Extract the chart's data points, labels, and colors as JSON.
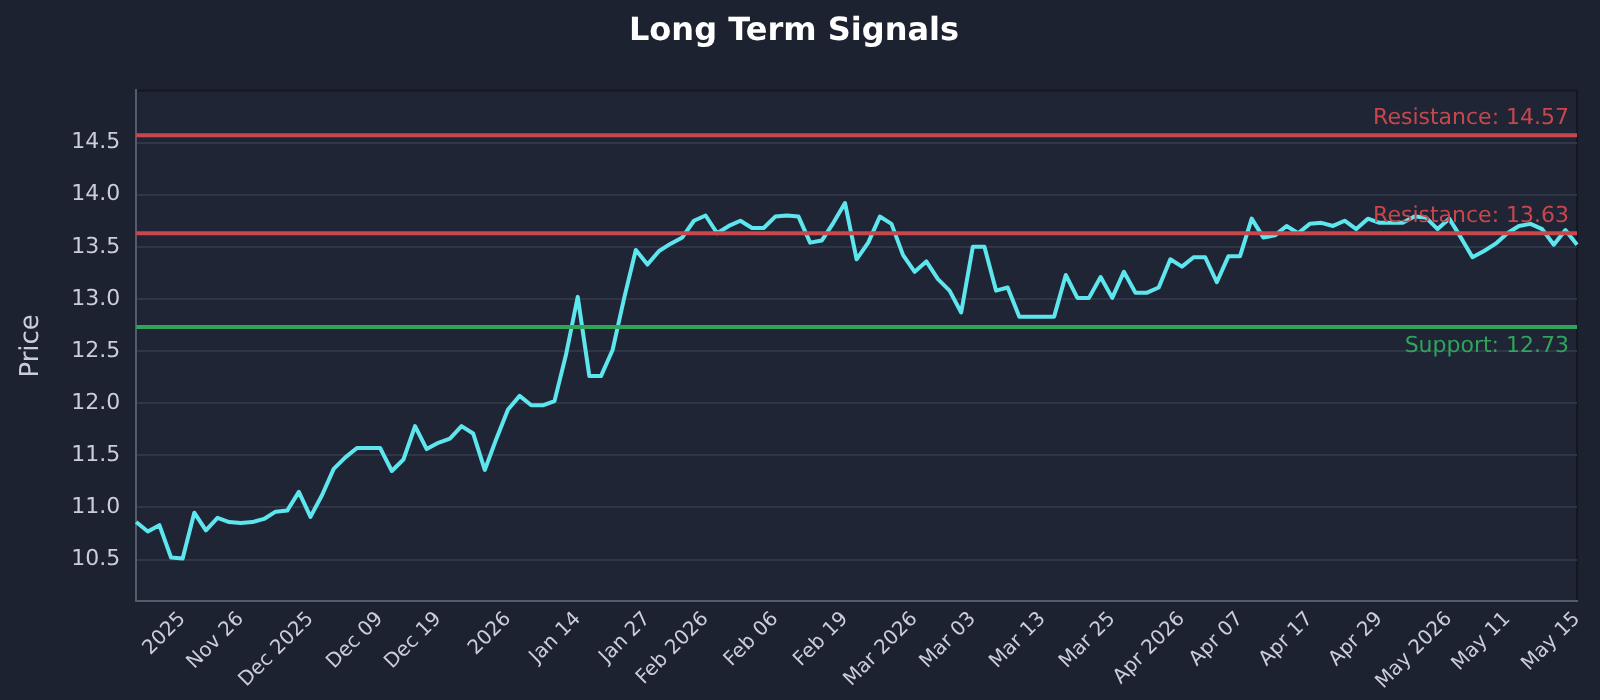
{
  "chart_data": {
    "type": "line",
    "title": "Long Term Signals",
    "ylabel": "Price",
    "categories": [
      null,
      null,
      null,
      null,
      "2025",
      null,
      null,
      null,
      null,
      "Nov 26",
      null,
      null,
      null,
      null,
      null,
      "Dec 2025",
      null,
      null,
      null,
      null,
      null,
      "Dec 09",
      null,
      null,
      null,
      null,
      "Dec 19",
      null,
      null,
      null,
      null,
      null,
      "2026",
      null,
      null,
      null,
      null,
      null,
      "Jan 14",
      null,
      null,
      null,
      null,
      null,
      "Jan 27",
      null,
      null,
      null,
      null,
      "Feb 2026",
      null,
      null,
      null,
      null,
      null,
      "Feb 06",
      null,
      null,
      null,
      null,
      null,
      "Feb 19",
      null,
      null,
      null,
      null,
      null,
      "Mar 2026",
      null,
      null,
      null,
      null,
      "Mar 03",
      null,
      null,
      null,
      null,
      null,
      "Mar 13",
      null,
      null,
      null,
      null,
      null,
      "Mar 25",
      null,
      null,
      null,
      null,
      null,
      "Apr 2026",
      null,
      null,
      null,
      null,
      "Apr 07",
      null,
      null,
      null,
      null,
      null,
      "Apr 17",
      null,
      null,
      null,
      null,
      null,
      "Apr 29",
      null,
      null,
      null,
      null,
      null,
      "May 2026",
      null,
      null,
      null,
      null,
      "May 11",
      null,
      null,
      null,
      null,
      null,
      "May 15"
    ],
    "series": [
      {
        "color": "#5ee6ee",
        "values": [
          10.86,
          10.77,
          10.83,
          10.52,
          10.51,
          10.95,
          10.78,
          10.9,
          10.86,
          10.85,
          10.86,
          10.89,
          10.96,
          10.97,
          11.15,
          10.91,
          11.12,
          11.37,
          11.48,
          11.57,
          11.57,
          11.57,
          11.35,
          11.46,
          11.78,
          11.56,
          11.62,
          11.66,
          11.78,
          11.71,
          11.36,
          11.66,
          11.94,
          12.07,
          11.98,
          11.98,
          12.02,
          12.47,
          13.02,
          12.26,
          12.26,
          12.51,
          13.01,
          13.47,
          13.33,
          13.46,
          13.53,
          13.59,
          13.75,
          13.8,
          13.63,
          13.7,
          13.75,
          13.68,
          13.68,
          13.79,
          13.8,
          13.79,
          13.54,
          13.56,
          13.73,
          13.92,
          13.38,
          13.54,
          13.79,
          13.72,
          13.42,
          13.26,
          13.36,
          13.19,
          13.08,
          12.87,
          13.5,
          13.5,
          13.08,
          13.11,
          12.83,
          12.83,
          12.83,
          12.83,
          13.23,
          13.01,
          13.01,
          13.21,
          13.01,
          13.26,
          13.06,
          13.06,
          13.11,
          13.38,
          13.31,
          13.4,
          13.4,
          13.16,
          13.41,
          13.41,
          13.77,
          13.59,
          13.61,
          13.7,
          13.63,
          13.72,
          13.73,
          13.7,
          13.75,
          13.67,
          13.77,
          13.73,
          13.73,
          13.73,
          13.79,
          13.78,
          13.67,
          13.77,
          13.59,
          13.4,
          13.46,
          13.53,
          13.63,
          13.7,
          13.72,
          13.67,
          13.52,
          13.66,
          13.52
        ]
      }
    ],
    "ylim": [
      10.1,
      15.0
    ],
    "yticks": [
      10.5,
      {
        "value": 11,
        "label": "11.0"
      },
      11.5,
      {
        "value": 12,
        "label": "12.0"
      },
      12.5,
      {
        "value": 13,
        "label": "13.0"
      },
      13.5,
      {
        "value": 14,
        "label": "14.0"
      },
      14.5
    ],
    "ref_lines": [
      {
        "axis": "y",
        "value": 14.57,
        "label": "Resistance: 14.57",
        "color": "#c8474c"
      },
      {
        "axis": "y",
        "value": 13.63,
        "label": "Resistance: 13.63",
        "color": "#c8474c"
      },
      {
        "axis": "y",
        "value": 12.73,
        "label": "Support: 12.73",
        "color": "#2fa45a"
      }
    ],
    "grid": "y",
    "legend": false,
    "marker": "none",
    "line_style": "solid"
  }
}
